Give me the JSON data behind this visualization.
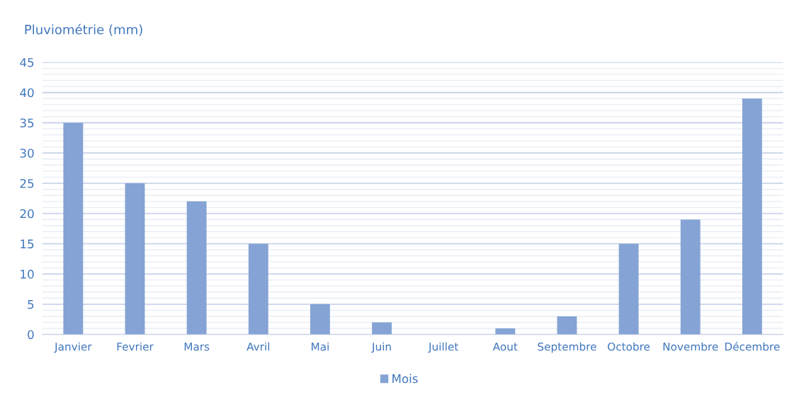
{
  "chart_data": {
    "type": "bar",
    "title": "Pluviométrie (mm)",
    "categories": [
      "Janvier",
      "Fevrier",
      "Mars",
      "Avril",
      "Mai",
      "Juin",
      "Juillet",
      "Aout",
      "Septembre",
      "Octobre",
      "Novembre",
      "Décembre"
    ],
    "series": [
      {
        "name": "Mois",
        "color": "#85a3d4",
        "values": [
          35,
          25,
          22,
          15,
          5,
          2,
          0,
          1,
          3,
          15,
          19,
          39
        ]
      }
    ],
    "ylim": [
      0,
      45
    ],
    "yticks": [
      0,
      5,
      10,
      15,
      20,
      25,
      30,
      35,
      40,
      45
    ],
    "grid": "y",
    "legend": "bottom"
  }
}
